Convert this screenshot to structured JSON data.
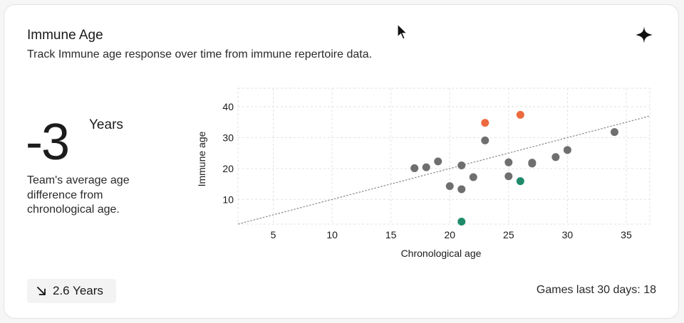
{
  "card": {
    "title": "Immune Age",
    "subtitle": "Track Immune age response over time from immune repertoire data.",
    "icon": "sparkle-icon"
  },
  "metric": {
    "value": "-3",
    "unit": "Years",
    "description": "Team's average age difference from chronological age."
  },
  "trend": {
    "icon": "arrow-down-right-icon",
    "label": "2.6 Years"
  },
  "footer": {
    "games_label": "Games last 30 days: 18"
  },
  "colors": {
    "default_point": "#6f6f6f",
    "high_point": "#ec6a3e",
    "low_point": "#1e8a6a",
    "trendline": "#888888",
    "grid": "#e2e2e2"
  },
  "chart_data": {
    "type": "scatter",
    "title": "",
    "xlabel": "Chronological age",
    "ylabel": "Immune age",
    "xlim": [
      2,
      37
    ],
    "ylim": [
      2,
      46
    ],
    "xticks": [
      5,
      10,
      15,
      20,
      25,
      30,
      35
    ],
    "yticks": [
      10,
      20,
      30,
      40
    ],
    "grid": true,
    "series": [
      {
        "color_key": "default_point",
        "points": [
          [
            17,
            20.1
          ],
          [
            18,
            20.4
          ],
          [
            19,
            22.3
          ],
          [
            20,
            14.3
          ],
          [
            21,
            21.0
          ],
          [
            21,
            13.3
          ],
          [
            22,
            17.2
          ],
          [
            23,
            29.1
          ],
          [
            25,
            22.0
          ],
          [
            25,
            17.5
          ],
          [
            27,
            21.9
          ],
          [
            27,
            21.6
          ],
          [
            29,
            23.7
          ],
          [
            30,
            26.0
          ],
          [
            34,
            31.8
          ]
        ]
      },
      {
        "color_key": "high_point",
        "points": [
          [
            23,
            34.8
          ],
          [
            26,
            37.4
          ]
        ]
      },
      {
        "color_key": "low_point",
        "points": [
          [
            26,
            15.9
          ],
          [
            21,
            2.8
          ]
        ]
      }
    ],
    "trendline": [
      [
        2,
        2
      ],
      [
        37,
        37
      ]
    ]
  }
}
